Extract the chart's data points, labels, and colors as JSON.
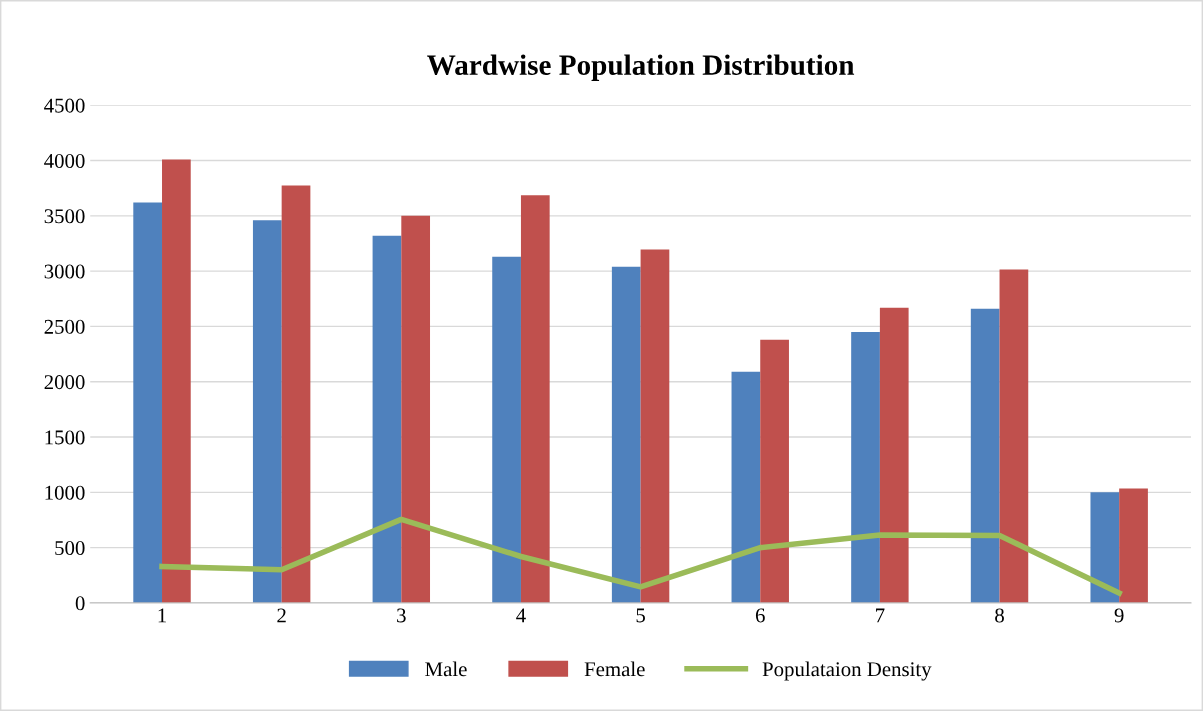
{
  "chart_data": {
    "type": "bar",
    "title": "Wardwise Population Distribution",
    "categories": [
      "1",
      "2",
      "3",
      "4",
      "5",
      "6",
      "7",
      "8",
      "9"
    ],
    "series": [
      {
        "name": "Male",
        "color": "#4f81bd",
        "values": [
          3620,
          3460,
          3320,
          3130,
          3040,
          2090,
          2450,
          2660,
          1000
        ]
      },
      {
        "name": "Female",
        "color": "#c0504d",
        "values": [
          4010,
          3775,
          3500,
          3685,
          3195,
          2380,
          2670,
          3015,
          1035
        ]
      },
      {
        "name": "Populataion Density",
        "color": "#9bbb59",
        "type": "line",
        "values": [
          330,
          300,
          755,
          420,
          145,
          500,
          615,
          610,
          90
        ]
      }
    ],
    "ylim": [
      0,
      4500
    ],
    "yticks": [
      0,
      500,
      1000,
      1500,
      2000,
      2500,
      3000,
      3500,
      4000,
      4500
    ],
    "grid": "y",
    "legend": "bottom",
    "marker": "none",
    "line_style": "solid"
  }
}
